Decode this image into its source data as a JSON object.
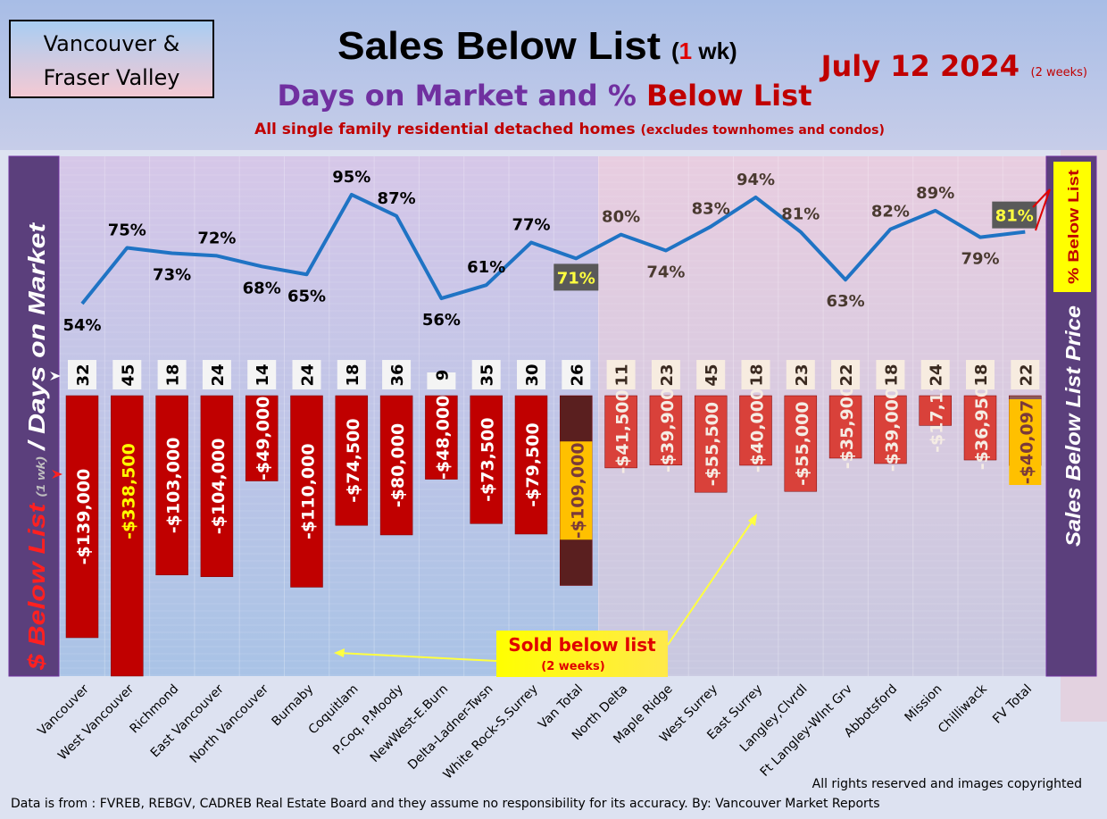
{
  "header": {
    "region_line1": "Vancouver &",
    "region_line2": "Fraser Valley",
    "title_main": "Sales Below List",
    "title_paren_open": "(",
    "title_wk_num": "1",
    "title_wk": " wk)",
    "date": "July 12  2024",
    "date_note": "(2 weeks)",
    "subtitle_part1": "Days on Market and % ",
    "subtitle_part2": "Below List",
    "description": "All single family residential detached homes",
    "description_note": "(excludes townhomes and condos)"
  },
  "left_axis": {
    "part1": "$ Below List",
    "part2": "(1 wk)",
    "part3": "/ Days on Market"
  },
  "right_axis": {
    "label": "Sales Below List Price",
    "badge": "% Below List"
  },
  "annotation": {
    "label": "Sold below list",
    "note": "(2 weeks)"
  },
  "footer": {
    "copyright": "All rights reserved and  images copyrighted",
    "source": "Data is from : FVREB, REBGV, CADREB Real Estate Board and they assume no responsibility for its accuracy. By: Vancouver Market Reports"
  },
  "colors": {
    "bar_van": "#c00000",
    "bar_fv": "#d9413a",
    "total_bar": "#5a1f1f",
    "line": "#1f73c4",
    "highlight": "#ffc000"
  },
  "chart_data": {
    "type": "bar+line",
    "categories": [
      "Vancouver",
      "West Vancouver",
      "Richmond",
      "East Vancouver",
      "North Vancouver",
      "Burnaby",
      "Coquitlam",
      "P.Coq, P.Moody",
      "NewWest-E.Burn",
      "Delta-Ladner-Twsn",
      "White Rock-S.Surrey",
      "Van Total",
      "North Delta",
      "Maple Ridge",
      "West Surrey",
      "East Surrey",
      "Langley,Clvrdl",
      "Ft Langley-Wlnt Grv",
      "Abbotsford",
      "Mission",
      "Chilliwack",
      "FV Total"
    ],
    "series": [
      {
        "name": "$ Below List (1 wk)",
        "type": "bar",
        "values": [
          -139000,
          -338500,
          -103000,
          -104000,
          -49000,
          -110000,
          -74500,
          -80000,
          -48000,
          -73500,
          -79500,
          -109000,
          -41500,
          -39900,
          -55500,
          -40000,
          -55000,
          -35900,
          -39000,
          -17125,
          -36950,
          -40097
        ],
        "labels": [
          "-$139,000",
          "-$338,500",
          "-$103,000",
          "-$104,000",
          "-$49,000",
          "-$110,000",
          "-$74,500",
          "-$80,000",
          "-$48,000",
          "-$73,500",
          "-$79,500",
          "-$109,000",
          "-$41,500",
          "-$39,900",
          "-$55,500",
          "-$40,000",
          "-$55,000",
          "-$35,900",
          "-$39,000",
          "-$17,125",
          "-$36,950",
          "-$40,097"
        ]
      },
      {
        "name": "Days on Market",
        "type": "label",
        "values": [
          32,
          45,
          18,
          24,
          14,
          24,
          18,
          36,
          9,
          35,
          30,
          26,
          11,
          23,
          45,
          18,
          23,
          22,
          18,
          24,
          18,
          22
        ]
      },
      {
        "name": "% Below List",
        "type": "line",
        "values": [
          54,
          75,
          73,
          72,
          68,
          65,
          95,
          87,
          56,
          61,
          77,
          71,
          80,
          74,
          83,
          94,
          81,
          63,
          82,
          89,
          79,
          81
        ],
        "labels": [
          "54%",
          "75%",
          "73%",
          "72%",
          "68%",
          "65%",
          "95%",
          "87%",
          "56%",
          "61%",
          "77%",
          "71%",
          "80%",
          "74%",
          "83%",
          "94%",
          "81%",
          "63%",
          "82%",
          "89%",
          "79%",
          "81%"
        ]
      }
    ],
    "xlabel": "",
    "ylabel": "$ Below List (1 wk) / Days on Market",
    "y2label": "Sales Below List Price",
    "grid": true
  }
}
